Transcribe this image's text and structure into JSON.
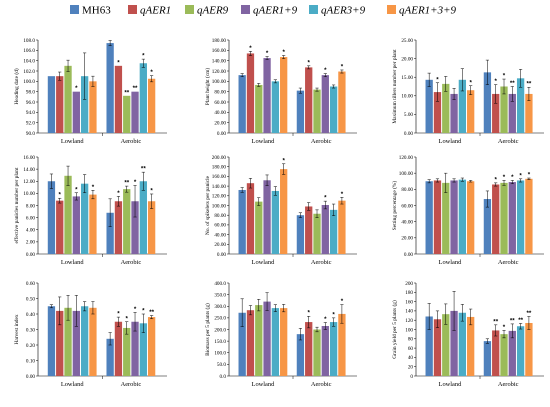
{
  "legend": [
    {
      "name": "MH63",
      "color": "#4f81bd"
    },
    {
      "name": "qAER1",
      "color": "#c0504d"
    },
    {
      "name": "qAER9",
      "color": "#9bbb59"
    },
    {
      "name": "qAER1+9",
      "color": "#8064a2"
    },
    {
      "name": "qAER3+9",
      "color": "#4bacc6"
    },
    {
      "name": "qAER1+3+9",
      "color": "#f79646"
    }
  ],
  "chart_data": [
    {
      "type": "bar",
      "ylabel": "Heading date (d)",
      "ylim": [
        90,
        108
      ],
      "ytick_step": 2,
      "ytick_decimals": 1,
      "categories": [
        "Lowland",
        "Aerobic"
      ],
      "series": [
        {
          "name": "MH63",
          "values": [
            101,
            107.4
          ],
          "err": [
            0,
            0.5
          ],
          "sig": [
            "",
            ""
          ]
        },
        {
          "name": "qAER1",
          "values": [
            101,
            103
          ],
          "err": [
            0.8,
            0
          ],
          "sig": [
            "",
            "*"
          ]
        },
        {
          "name": "qAER9",
          "values": [
            103,
            97.2
          ],
          "err": [
            1.1,
            0
          ],
          "sig": [
            "",
            "**"
          ]
        },
        {
          "name": "qAER1+9",
          "values": [
            98,
            98
          ],
          "err": [
            0,
            0
          ],
          "sig": [
            "*",
            "**"
          ]
        },
        {
          "name": "qAER3+9",
          "values": [
            101,
            103.5
          ],
          "err": [
            4.5,
            0.8
          ],
          "sig": [
            "",
            "*"
          ]
        },
        {
          "name": "qAER1+3+9",
          "values": [
            100,
            100.5
          ],
          "err": [
            1,
            0.6
          ],
          "sig": [
            "",
            "*"
          ]
        }
      ]
    },
    {
      "type": "bar",
      "ylabel": "Plant height (cm)",
      "ylim": [
        0,
        180
      ],
      "ytick_step": 20,
      "ytick_decimals": 2,
      "categories": [
        "Lowland",
        "Aerobic"
      ],
      "series": [
        {
          "name": "MH63",
          "values": [
            112,
            82
          ],
          "err": [
            3,
            5
          ],
          "sig": [
            "",
            ""
          ]
        },
        {
          "name": "qAER1",
          "values": [
            154,
            127
          ],
          "err": [
            4,
            3
          ],
          "sig": [
            "*",
            "*"
          ]
        },
        {
          "name": "qAER9",
          "values": [
            93,
            84
          ],
          "err": [
            3,
            3
          ],
          "sig": [
            "",
            ""
          ]
        },
        {
          "name": "qAER1+9",
          "values": [
            145,
            112
          ],
          "err": [
            3,
            3
          ],
          "sig": [
            "*",
            "*"
          ]
        },
        {
          "name": "qAER3+9",
          "values": [
            100,
            90
          ],
          "err": [
            3,
            3
          ],
          "sig": [
            "",
            ""
          ]
        },
        {
          "name": "qAER1+3+9",
          "values": [
            147,
            119
          ],
          "err": [
            3,
            3
          ],
          "sig": [
            "*",
            "*"
          ]
        }
      ]
    },
    {
      "type": "bar",
      "ylabel": "Maximum tillers number per plant",
      "ylim": [
        0,
        25
      ],
      "ytick_step": 5,
      "ytick_decimals": 2,
      "categories": [
        "Lowland",
        "Aerobic"
      ],
      "series": [
        {
          "name": "MH63",
          "values": [
            14.3,
            16.3
          ],
          "err": [
            1.8,
            3.3
          ],
          "sig": [
            "",
            ""
          ]
        },
        {
          "name": "qAER1",
          "values": [
            11,
            10.5
          ],
          "err": [
            2.5,
            2.5
          ],
          "sig": [
            "*",
            "*"
          ]
        },
        {
          "name": "qAER9",
          "values": [
            13.2,
            12.5
          ],
          "err": [
            2,
            2
          ],
          "sig": [
            "",
            "*"
          ]
        },
        {
          "name": "qAER1+9",
          "values": [
            10.5,
            10.5
          ],
          "err": [
            1.5,
            2
          ],
          "sig": [
            "",
            "**"
          ]
        },
        {
          "name": "qAER3+9",
          "values": [
            14.3,
            14.7
          ],
          "err": [
            3,
            2.4
          ],
          "sig": [
            "",
            ""
          ]
        },
        {
          "name": "qAER1+3+9",
          "values": [
            11.5,
            10.5
          ],
          "err": [
            1.2,
            1.8
          ],
          "sig": [
            "*",
            "**"
          ]
        }
      ]
    },
    {
      "type": "bar",
      "ylabel": "effective panicles number per plant",
      "ylim": [
        0,
        16
      ],
      "ytick_step": 2,
      "ytick_decimals": 2,
      "categories": [
        "Lowland",
        "Aerobic"
      ],
      "series": [
        {
          "name": "MH63",
          "values": [
            12,
            6.8
          ],
          "err": [
            1.2,
            2.3
          ],
          "sig": [
            "",
            ""
          ]
        },
        {
          "name": "qAER1",
          "values": [
            8.8,
            8.7
          ],
          "err": [
            0.4,
            0.8
          ],
          "sig": [
            "*",
            "*"
          ]
        },
        {
          "name": "qAER9",
          "values": [
            12.9,
            10.7
          ],
          "err": [
            1.6,
            0.5
          ],
          "sig": [
            "",
            "**"
          ]
        },
        {
          "name": "qAER1+9",
          "values": [
            9.5,
            8.7
          ],
          "err": [
            0.6,
            2.6
          ],
          "sig": [
            "*",
            "*"
          ]
        },
        {
          "name": "qAER3+9",
          "values": [
            11.6,
            12
          ],
          "err": [
            1.5,
            1.5
          ],
          "sig": [
            "",
            "**"
          ]
        },
        {
          "name": "qAER1+3+9",
          "values": [
            9.8,
            8.7
          ],
          "err": [
            0.7,
            1.2
          ],
          "sig": [
            "*",
            "*"
          ]
        }
      ]
    },
    {
      "type": "bar",
      "ylabel": "No. of spikelets per panicle",
      "ylim": [
        0,
        200
      ],
      "ytick_step": 20,
      "ytick_decimals": 2,
      "categories": [
        "Lowland",
        "Aerobic"
      ],
      "series": [
        {
          "name": "MH63",
          "values": [
            132,
            80
          ],
          "err": [
            5,
            5
          ],
          "sig": [
            "",
            ""
          ]
        },
        {
          "name": "qAER1",
          "values": [
            146,
            98
          ],
          "err": [
            10,
            8
          ],
          "sig": [
            "",
            ""
          ]
        },
        {
          "name": "qAER9",
          "values": [
            108,
            83
          ],
          "err": [
            8,
            8
          ],
          "sig": [
            "",
            ""
          ]
        },
        {
          "name": "qAER1+9",
          "values": [
            152,
            101
          ],
          "err": [
            11,
            8
          ],
          "sig": [
            "",
            "*"
          ]
        },
        {
          "name": "qAER3+9",
          "values": [
            130,
            91
          ],
          "err": [
            9,
            12
          ],
          "sig": [
            "",
            ""
          ]
        },
        {
          "name": "qAER1+3+9",
          "values": [
            175,
            110
          ],
          "err": [
            11,
            7
          ],
          "sig": [
            "*",
            "*"
          ]
        }
      ]
    },
    {
      "type": "bar",
      "ylabel": "Setting percentage (%)",
      "ylim": [
        0,
        120
      ],
      "ytick_step": 20,
      "ytick_decimals": 2,
      "categories": [
        "Lowland",
        "Aerobic"
      ],
      "series": [
        {
          "name": "MH63",
          "values": [
            90,
            68
          ],
          "err": [
            2,
            10
          ],
          "sig": [
            "",
            ""
          ]
        },
        {
          "name": "qAER1",
          "values": [
            91,
            86
          ],
          "err": [
            2,
            2
          ],
          "sig": [
            "",
            "*"
          ]
        },
        {
          "name": "qAER9",
          "values": [
            88,
            88
          ],
          "err": [
            12,
            3
          ],
          "sig": [
            "",
            "*"
          ]
        },
        {
          "name": "qAER1+9",
          "values": [
            91,
            89
          ],
          "err": [
            2,
            2
          ],
          "sig": [
            "",
            "*"
          ]
        },
        {
          "name": "qAER3+9",
          "values": [
            92,
            91
          ],
          "err": [
            2,
            2
          ],
          "sig": [
            "",
            "*"
          ]
        },
        {
          "name": "qAER1+3+9",
          "values": [
            90,
            93
          ],
          "err": [
            1,
            1
          ],
          "sig": [
            "",
            "*"
          ]
        }
      ]
    },
    {
      "type": "bar",
      "ylabel": "Harvest index",
      "ylim": [
        0,
        0.6
      ],
      "ytick_step": 0.1,
      "ytick_decimals": 2,
      "categories": [
        "Lowland",
        "Aerobic"
      ],
      "series": [
        {
          "name": "MH63",
          "values": [
            0.45,
            0.24
          ],
          "err": [
            0.01,
            0.04
          ],
          "sig": [
            "",
            ""
          ]
        },
        {
          "name": "qAER1",
          "values": [
            0.42,
            0.35
          ],
          "err": [
            0.09,
            0.03
          ],
          "sig": [
            "",
            "*"
          ]
        },
        {
          "name": "qAER9",
          "values": [
            0.44,
            0.31
          ],
          "err": [
            0.08,
            0.04
          ],
          "sig": [
            "",
            "*"
          ]
        },
        {
          "name": "qAER1+9",
          "values": [
            0.42,
            0.35
          ],
          "err": [
            0.1,
            0.06
          ],
          "sig": [
            "",
            "*"
          ]
        },
        {
          "name": "qAER3+9",
          "values": [
            0.45,
            0.34
          ],
          "err": [
            0.03,
            0.06
          ],
          "sig": [
            "",
            "*"
          ]
        },
        {
          "name": "qAER1+3+9",
          "values": [
            0.44,
            0.38
          ],
          "err": [
            0.04,
            0.01
          ],
          "sig": [
            "",
            "**"
          ]
        }
      ]
    },
    {
      "type": "bar",
      "ylabel": "Biomass per 5 plants (g)",
      "ylim": [
        0,
        400
      ],
      "ytick_step": 50,
      "ytick_decimals": 1,
      "categories": [
        "Lowland",
        "Aerobic"
      ],
      "series": [
        {
          "name": "MH63",
          "values": [
            272,
            180
          ],
          "err": [
            60,
            25
          ],
          "sig": [
            "",
            ""
          ]
        },
        {
          "name": "qAER1",
          "values": [
            283,
            232
          ],
          "err": [
            20,
            25
          ],
          "sig": [
            "",
            "*"
          ]
        },
        {
          "name": "qAER9",
          "values": [
            305,
            200
          ],
          "err": [
            25,
            10
          ],
          "sig": [
            "",
            ""
          ]
        },
        {
          "name": "qAER1+9",
          "values": [
            320,
            215
          ],
          "err": [
            38,
            15
          ],
          "sig": [
            "",
            "*"
          ]
        },
        {
          "name": "qAER3+9",
          "values": [
            292,
            232
          ],
          "err": [
            15,
            18
          ],
          "sig": [
            "",
            "*"
          ]
        },
        {
          "name": "qAER1+3+9",
          "values": [
            292,
            267
          ],
          "err": [
            16,
            40
          ],
          "sig": [
            "",
            "*"
          ]
        }
      ]
    },
    {
      "type": "bar",
      "ylabel": "Grain yield per 5 plants (g)",
      "ylim": [
        0,
        200
      ],
      "ytick_step": 20,
      "ytick_decimals": 0,
      "categories": [
        "Lowland",
        "Aerobic"
      ],
      "series": [
        {
          "name": "MH63",
          "values": [
            128,
            75
          ],
          "err": [
            28,
            5
          ],
          "sig": [
            "",
            ""
          ]
        },
        {
          "name": "qAER1",
          "values": [
            122,
            98
          ],
          "err": [
            18,
            12
          ],
          "sig": [
            "",
            "**"
          ]
        },
        {
          "name": "qAER9",
          "values": [
            133,
            90
          ],
          "err": [
            22,
            8
          ],
          "sig": [
            "",
            "*"
          ]
        },
        {
          "name": "qAER1+9",
          "values": [
            140,
            97
          ],
          "err": [
            42,
            15
          ],
          "sig": [
            "",
            "**"
          ]
        },
        {
          "name": "qAER3+9",
          "values": [
            136,
            107
          ],
          "err": [
            18,
            6
          ],
          "sig": [
            "",
            "**"
          ]
        },
        {
          "name": "qAER1+3+9",
          "values": [
            127,
            114
          ],
          "err": [
            17,
            14
          ],
          "sig": [
            "",
            "**"
          ]
        }
      ]
    }
  ]
}
